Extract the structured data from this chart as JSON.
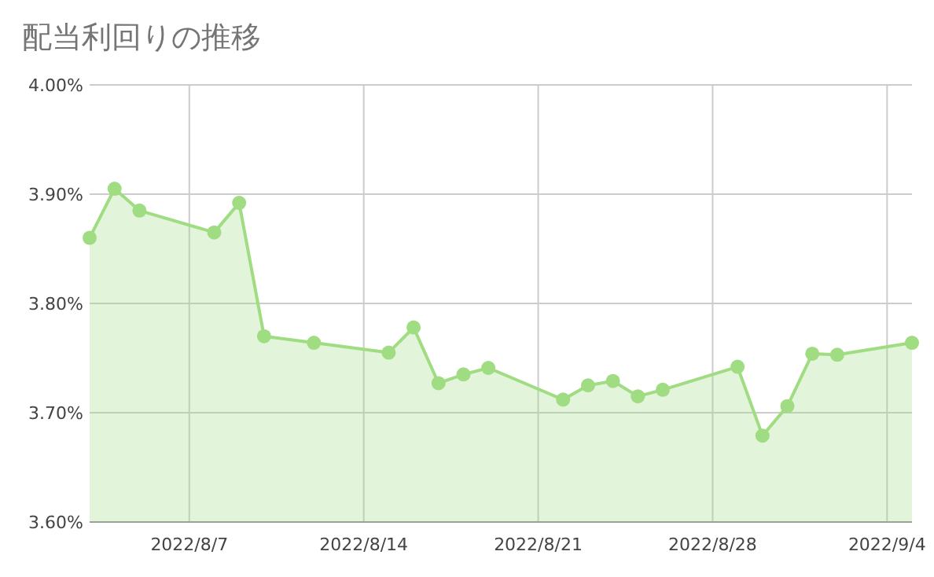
{
  "chart_data": {
    "type": "area",
    "title": "配当利回りの推移",
    "marker": "circle",
    "grid": true,
    "x": [
      "2022-08-03",
      "2022-08-04",
      "2022-08-05",
      "2022-08-08",
      "2022-08-09",
      "2022-08-10",
      "2022-08-12",
      "2022-08-15",
      "2022-08-16",
      "2022-08-17",
      "2022-08-18",
      "2022-08-19",
      "2022-08-22",
      "2022-08-23",
      "2022-08-24",
      "2022-08-25",
      "2022-08-26",
      "2022-08-29",
      "2022-08-30",
      "2022-08-31",
      "2022-09-01",
      "2022-09-02",
      "2022-09-05"
    ],
    "series": [
      {
        "color": "#a0dc82",
        "values": [
          3.86,
          3.905,
          3.885,
          3.865,
          3.892,
          3.77,
          3.764,
          3.755,
          3.778,
          3.727,
          3.735,
          3.741,
          3.712,
          3.725,
          3.729,
          3.715,
          3.721,
          3.742,
          3.679,
          3.706,
          3.754,
          3.753,
          3.764
        ]
      }
    ],
    "xlim": [
      "2022-08-03",
      "2022-09-05"
    ],
    "xticks": [
      {
        "value": "2022-08-07",
        "label": "2022/8/7"
      },
      {
        "value": "2022-08-14",
        "label": "2022/8/14"
      },
      {
        "value": "2022-08-21",
        "label": "2022/8/21"
      },
      {
        "value": "2022-08-28",
        "label": "2022/8/28"
      },
      {
        "value": "2022-09-04",
        "label": "2022/9/4"
      }
    ],
    "ylim": [
      3.6,
      4.0
    ],
    "yticks": [
      {
        "value": 3.6,
        "label": "3.60%"
      },
      {
        "value": 3.7,
        "label": "3.70%"
      },
      {
        "value": 3.8,
        "label": "3.80%"
      },
      {
        "value": 3.9,
        "label": "3.90%"
      },
      {
        "value": 4.0,
        "label": "4.00%"
      }
    ]
  }
}
